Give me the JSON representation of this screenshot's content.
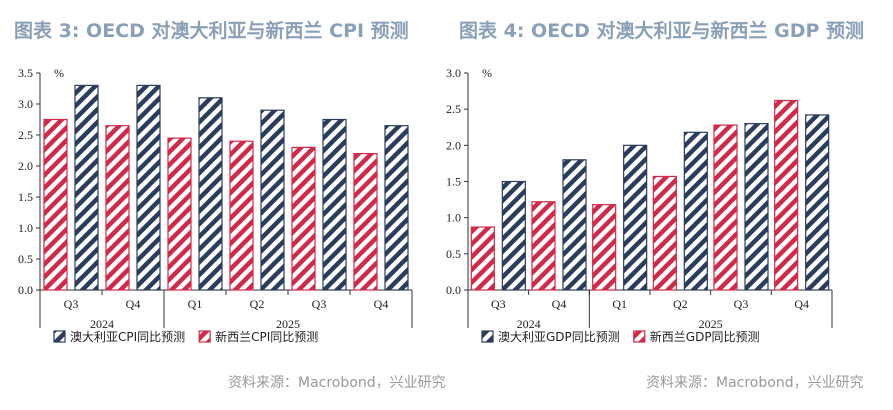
{
  "charts": [
    {
      "title": "图表 3: OECD 对澳大利亚与新西兰 CPI 预测",
      "source": "资料来源：Macrobond，兴业研究",
      "chart_data": {
        "type": "bar",
        "title": "图表 3: OECD 对澳大利亚与新西兰 CPI 预测",
        "unit": "%",
        "categories": [
          "Q3",
          "Q4",
          "Q1",
          "Q2",
          "Q3",
          "Q4"
        ],
        "category_groups": [
          {
            "label": "2024",
            "span": 2
          },
          {
            "label": "2025",
            "span": 4
          }
        ],
        "ylim": [
          0,
          3.5
        ],
        "yticks": [
          "0.0",
          "0.5",
          "1.0",
          "1.5",
          "2.0",
          "2.5",
          "3.0",
          "3.5"
        ],
        "series_order": [
          1,
          0
        ],
        "series": [
          {
            "name": "澳大利亚CPI同比预测",
            "color": "#2a3d5c",
            "values": [
              3.3,
              3.3,
              3.1,
              2.9,
              2.75,
              2.65
            ]
          },
          {
            "name": "新西兰CPI同比预测",
            "color": "#d02a48",
            "values": [
              2.75,
              2.65,
              2.45,
              2.4,
              2.3,
              2.2
            ]
          }
        ],
        "legend_position": "bottom-left"
      }
    },
    {
      "title": "图表 4: OECD 对澳大利亚与新西兰 GDP 预测",
      "source": "资料来源：Macrobond，兴业研究",
      "chart_data": {
        "type": "bar",
        "title": "图表 4: OECD 对澳大利亚与新西兰 GDP 预测",
        "unit": "%",
        "categories": [
          "Q3",
          "Q4",
          "Q1",
          "Q2",
          "Q3",
          "Q4"
        ],
        "category_groups": [
          {
            "label": "2024",
            "span": 2
          },
          {
            "label": "2025",
            "span": 4
          }
        ],
        "ylim": [
          0,
          3.0
        ],
        "yticks": [
          "0.0",
          "0.5",
          "1.0",
          "1.5",
          "2.0",
          "2.5",
          "3.0"
        ],
        "series_order": [
          1,
          0
        ],
        "series": [
          {
            "name": "澳大利亚GDP同比预测",
            "color": "#2a3d5c",
            "values": [
              1.5,
              1.8,
              2.0,
              2.18,
              2.3,
              2.42
            ]
          },
          {
            "name": "新西兰GDP同比预测",
            "color": "#d02a48",
            "values": [
              0.87,
              1.22,
              1.18,
              1.57,
              2.28,
              2.62
            ]
          }
        ],
        "legend_position": "bottom-left"
      }
    }
  ]
}
